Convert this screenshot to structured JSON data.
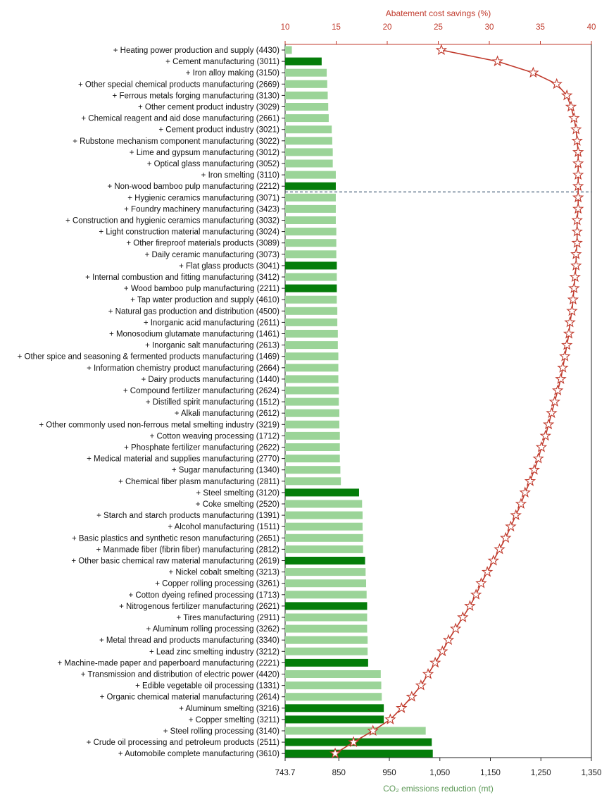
{
  "chart_data": {
    "type": "bar",
    "orientation": "horizontal",
    "grid": false,
    "legend": "none",
    "categories": [
      "+ Heating power production and supply (4430)",
      "+ Cement manufacturing (3011)",
      "+ Iron alloy making (3150)",
      "+ Other special chemical products manufacturing (2669)",
      "+ Ferrous metals forging manufacturing (3130)",
      "+ Other cement product industry (3029)",
      "+ Chemical reagent and aid dose manufacturing (2661)",
      "+ Cement product industry (3021)",
      "+ Rubstone mechanism component manufacturing (3022)",
      "+ Lime and gypsum manufacturing (3012)",
      "+ Optical glass manufacturing (3052)",
      "+ Iron smelting (3110)",
      "+ Non-wood bamboo pulp manufacturing (2212)",
      "+ Hygienic ceramics manufacturing (3071)",
      "+ Foundry machinery manufacturing (3423)",
      "+ Construction and hygienic ceramics manufacturing (3032)",
      "+ Light construction material manufacturing (3024)",
      "+ Other fireproof materials products (3089)",
      "+ Daily ceramic manufacturing (3073)",
      "+ Flat glass products (3041)",
      "+ Internal combustion and fitting manufacturing (3412)",
      "+ Wood bamboo pulp manufacturing (2211)",
      "+ Tap water production and supply (4610)",
      "+ Natural gas production and distribution (4500)",
      "+ Inorganic acid manufacturing (2611)",
      "+ Monosodium glutamate manufacturing (1461)",
      "+ Inorganic salt manufacturing (2613)",
      "+ Other spice and seasoning & fermented products manufacturing (1469)",
      "+ Information chemistry product manufacturing (2664)",
      "+ Dairy products manufacturing (1440)",
      "+ Compound fertilizer manufacturing (2624)",
      "+ Distilled spirit manufacturing (1512)",
      "+ Alkali manufacturing (2612)",
      "+ Other commonly used non-ferrous metal smelting industry (3219)",
      "+ Cotton weaving processing (1712)",
      "+ Phosphate fertilizer manufacturing (2622)",
      "+ Medical material and supplies manufacturing (2770)",
      "+ Sugar manufacturing (1340)",
      "+ Chemical fiber plasm manufacturing (2811)",
      "+ Steel smelting (3120)",
      "+ Coke smelting (2520)",
      "+ Starch and starch products manufacturing (1391)",
      "+ Alcohol manufacturing (1511)",
      "+ Basic plastics and synthetic reson manufacturing (2651)",
      "+ Manmade fiber (fibrin fiber) manufacturing (2812)",
      "+ Other basic chemical raw material manufacturing (2619)",
      "+ Nickel cobalt smelting (3213)",
      "+ Copper rolling processing (3261)",
      "+ Cotton dyeing refined processing (1713)",
      "+ Nitrogenous fertilizer manufacturing (2621)",
      "+ Tires manufacturing (2911)",
      "+ Aluminum rolling processing (3262)",
      "+ Metal thread and products manufacturing (3340)",
      "+ Lead zinc smelting industry (3212)",
      "+ Machine-made paper and paperboard manufacturing (2221)",
      "+ Transmission and distribution of electric power (4420)",
      "+ Edible vegetable oil processing (1331)",
      "+ Organic chemical material manufacturing (2614)",
      "+ Aluminum smelting (3216)",
      "+ Copper smelting (3211)",
      "+ Steel rolling processing (3140)",
      "+ Crude oil processing and petroleum products (2511)",
      "+ Automobile complete manufacturing (3610)"
    ],
    "values": [
      757,
      816,
      826,
      827,
      828,
      829,
      830,
      836,
      837,
      838,
      838,
      844,
      844,
      844,
      844,
      844,
      845,
      845,
      845,
      846,
      846,
      846,
      846,
      847,
      847,
      848,
      848,
      849,
      849,
      849,
      850,
      850,
      851,
      851,
      852,
      852,
      852,
      853,
      854,
      890,
      896,
      897,
      897,
      898,
      898,
      902,
      903,
      904,
      905,
      906,
      906,
      906,
      907,
      907,
      908,
      933,
      934,
      935,
      939,
      939,
      1022,
      1034,
      1036
    ],
    "bar_emphasis": [
      "light",
      "dark",
      "light",
      "light",
      "light",
      "light",
      "light",
      "light",
      "light",
      "light",
      "light",
      "light",
      "dark",
      "light",
      "light",
      "light",
      "light",
      "light",
      "light",
      "dark",
      "light",
      "dark",
      "light",
      "light",
      "light",
      "light",
      "light",
      "light",
      "light",
      "light",
      "light",
      "light",
      "light",
      "light",
      "light",
      "light",
      "light",
      "light",
      "light",
      "dark",
      "light",
      "light",
      "light",
      "light",
      "light",
      "dark",
      "light",
      "light",
      "light",
      "dark",
      "light",
      "light",
      "light",
      "light",
      "dark",
      "light",
      "light",
      "light",
      "dark",
      "dark",
      "light",
      "dark",
      "dark"
    ],
    "savings_percent": [
      25.3,
      30.8,
      34.3,
      36.6,
      37.6,
      38.0,
      38.3,
      38.5,
      38.6,
      38.7,
      38.7,
      38.7,
      38.7,
      38.7,
      38.7,
      38.6,
      38.6,
      38.6,
      38.5,
      38.5,
      38.4,
      38.3,
      38.2,
      38.1,
      37.9,
      37.8,
      37.6,
      37.4,
      37.2,
      37.0,
      36.7,
      36.4,
      36.1,
      35.8,
      35.5,
      35.1,
      34.8,
      34.4,
      34.0,
      33.5,
      33.1,
      32.6,
      32.1,
      31.6,
      31.0,
      30.4,
      29.8,
      29.2,
      28.7,
      28.1,
      27.4,
      26.7,
      26.0,
      25.4,
      24.7,
      24.0,
      23.3,
      22.4,
      21.4,
      20.3,
      18.6,
      16.7,
      14.9
    ],
    "dashed_line_after_index": 12,
    "x_bottom": {
      "label": "CO₂ emissions reduction (mt)",
      "range": [
        743.7,
        1350
      ],
      "ticks": [
        "743.7",
        "850",
        "950",
        "1,050",
        "1,150",
        "1,250",
        "1,350"
      ],
      "tick_values": [
        743.7,
        850,
        950,
        1050,
        1150,
        1250,
        1350
      ]
    },
    "x_top": {
      "label": "Abatement cost savings (%)",
      "range": [
        10,
        40
      ],
      "ticks": [
        "10",
        "15",
        "20",
        "25",
        "30",
        "35",
        "40"
      ],
      "tick_values": [
        10,
        15,
        20,
        25,
        30,
        35,
        40
      ]
    },
    "colors": {
      "bar_dark": "#057d0a",
      "bar_light": "#9bd498",
      "savings_line": "#c0392b",
      "star_stroke": "#c0392b",
      "dashed": "#1f3b5c",
      "axis": "#222222",
      "top_axis": "#c0392b",
      "bottom_title": "#5f9a59"
    },
    "marker": "star-outline"
  }
}
